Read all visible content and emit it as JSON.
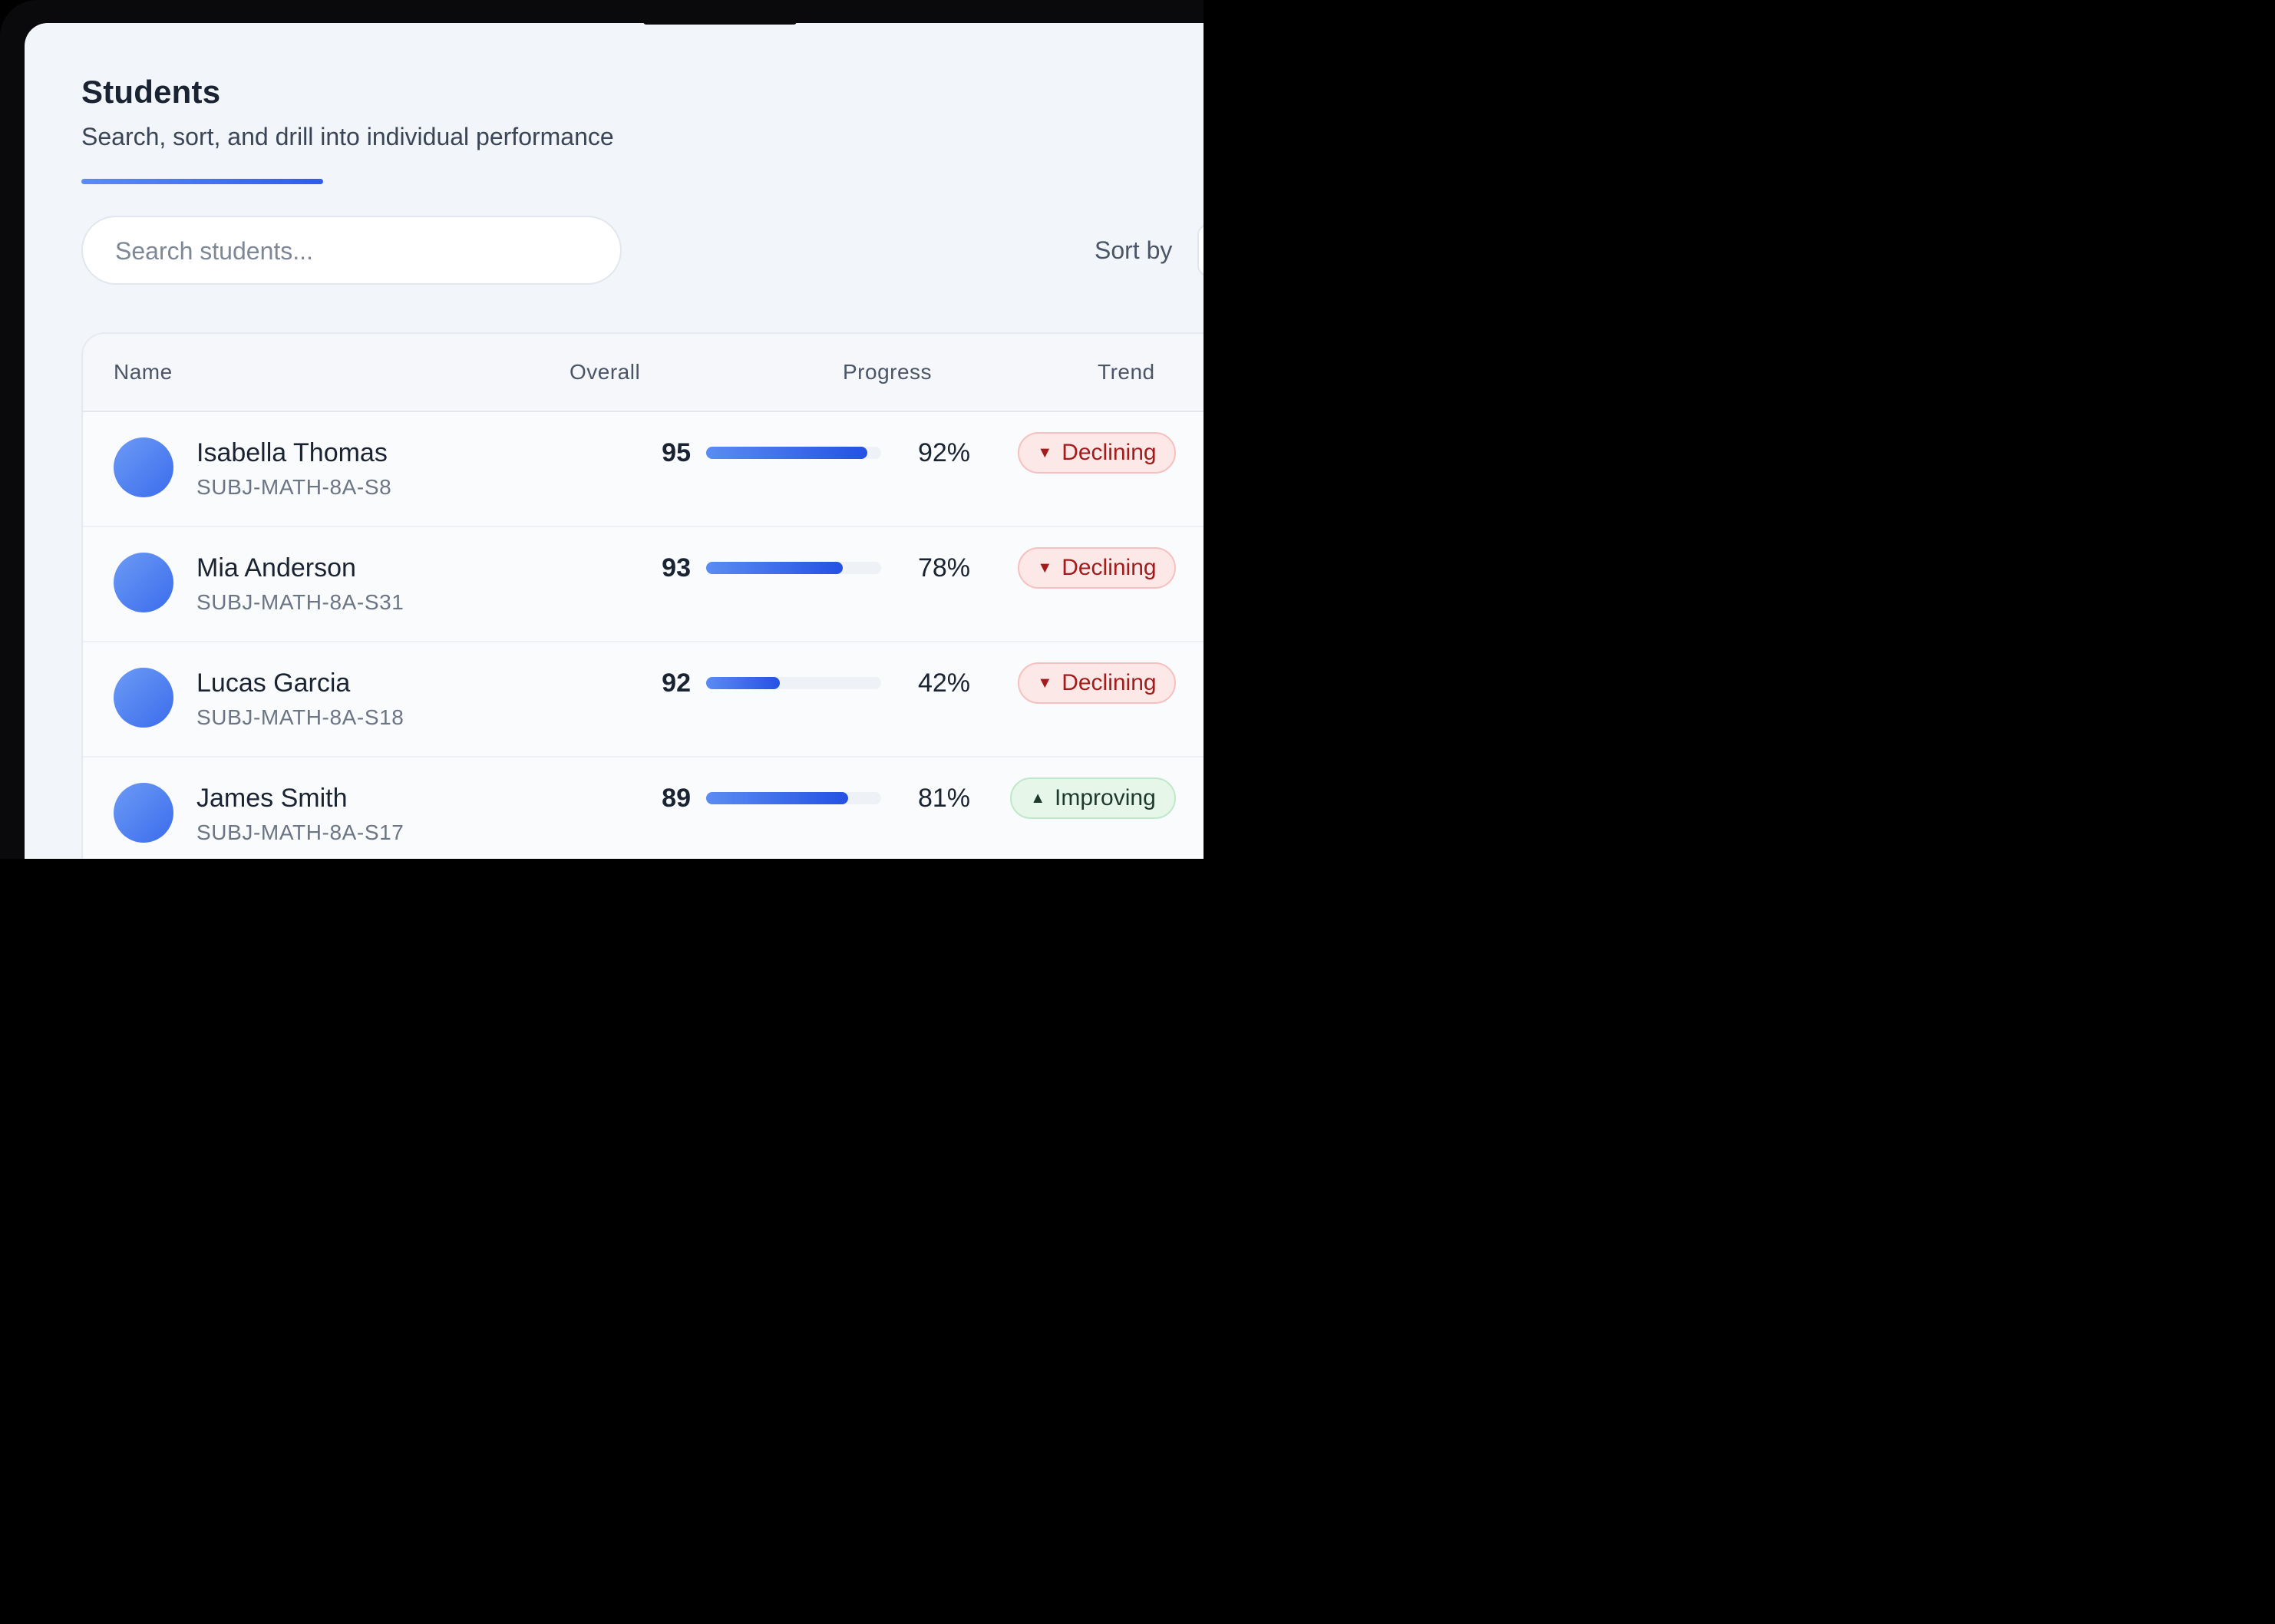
{
  "header": {
    "title": "Students",
    "subtitle": "Search, sort, and drill into individual performance"
  },
  "search": {
    "placeholder": "Search students...",
    "value": ""
  },
  "sort": {
    "label": "Sort by"
  },
  "table": {
    "columns": [
      "Name",
      "Overall",
      "Progress",
      "Trend"
    ],
    "rows": [
      {
        "name": "Isabella Thomas",
        "id": "SUBJ-MATH-8A-S8",
        "overall": "95",
        "progress_label": "92%",
        "progress": 0.92,
        "trend": "Declining",
        "trend_icon": "triangle-down-icon",
        "trend_color": "#a21c1c"
      },
      {
        "name": "Mia Anderson",
        "id": "SUBJ-MATH-8A-S31",
        "overall": "93",
        "progress_label": "78%",
        "progress": 0.78,
        "trend": "Declining",
        "trend_icon": "triangle-down-icon",
        "trend_color": "#a21c1c"
      },
      {
        "name": "Lucas Garcia",
        "id": "SUBJ-MATH-8A-S18",
        "overall": "92",
        "progress_label": "42%",
        "progress": 0.42,
        "trend": "Declining",
        "trend_icon": "triangle-down-icon",
        "trend_color": "#a21c1c"
      },
      {
        "name": "James Smith",
        "id": "SUBJ-MATH-8A-S17",
        "overall": "89",
        "progress_label": "81%",
        "progress": 0.81,
        "trend": "Improving",
        "trend_icon": "triangle-up-icon",
        "trend_color": "#1e3a2a"
      }
    ]
  },
  "colors": {
    "accent": "#2f5de8",
    "background": "#f2f5f9",
    "declining_bg": "#fde8e8",
    "improving_bg": "#e6f7ea"
  }
}
